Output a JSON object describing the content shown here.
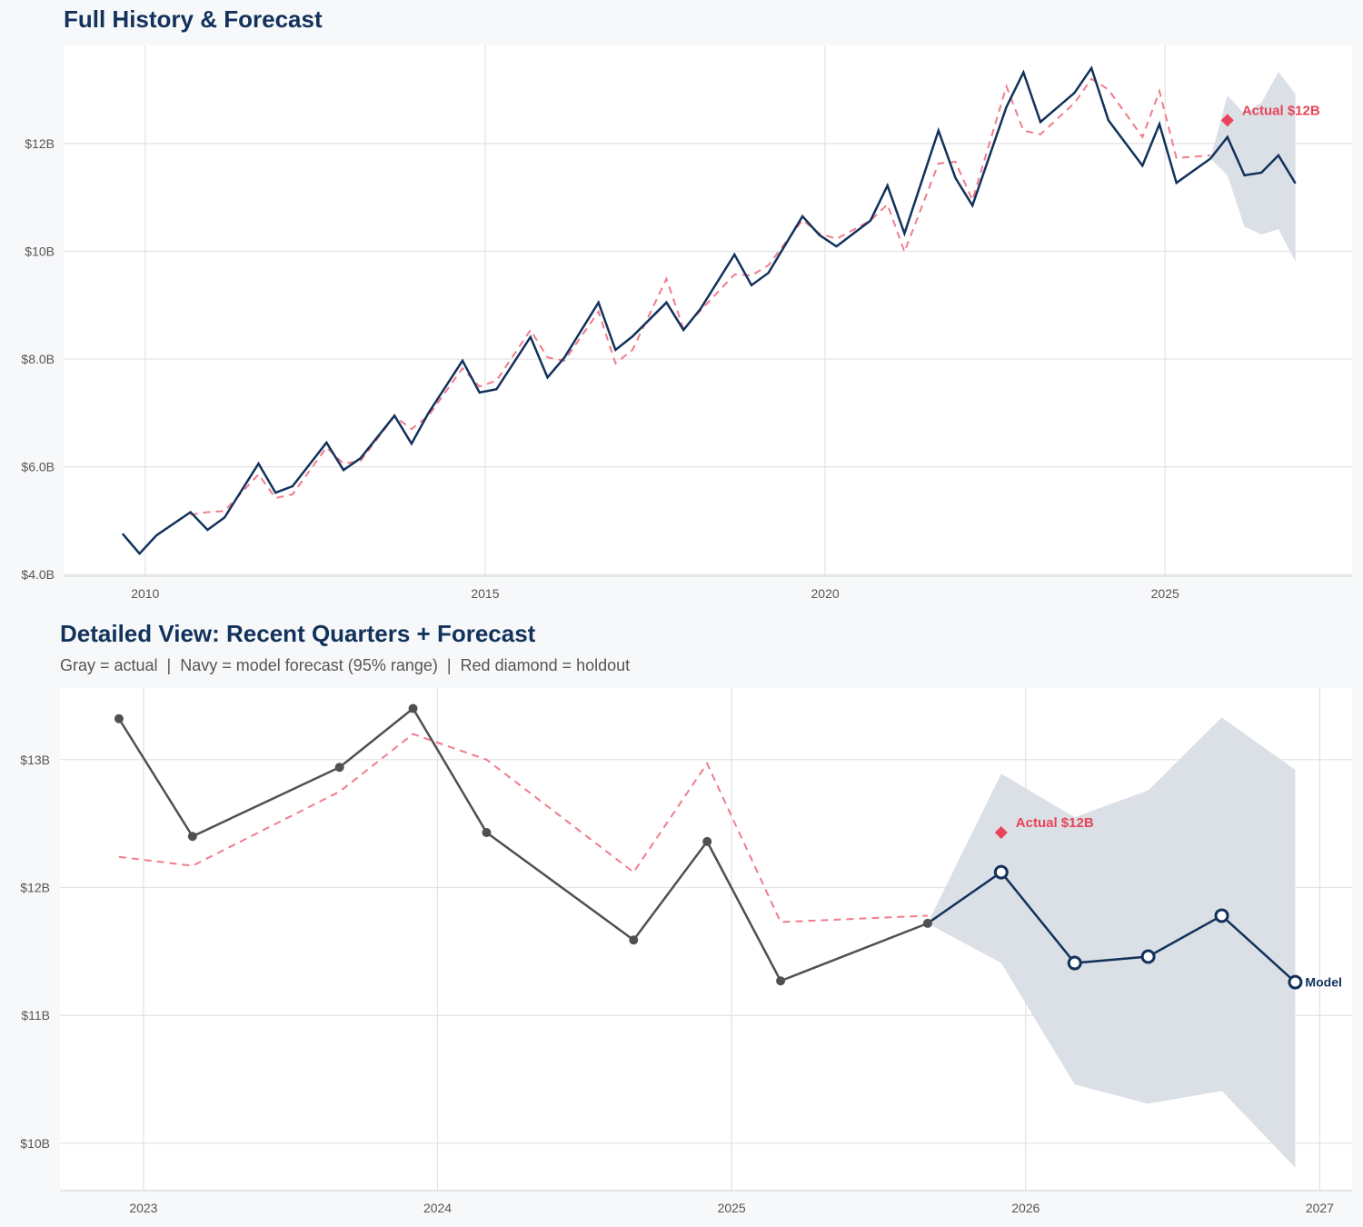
{
  "chart_data": [
    {
      "type": "line",
      "title": "Full History & Forecast",
      "xlim": [
        2008.8,
        2027.75
      ],
      "ylim": [
        3.97,
        13.82
      ],
      "grid": true,
      "xticks": [
        2010,
        2015,
        2020,
        2025
      ],
      "xtick_labels": [
        "2010",
        "2015",
        "2020",
        "2025"
      ],
      "yticks": [
        4,
        6,
        8,
        10,
        12
      ],
      "ytick_labels": [
        "$4.0B",
        "$6.0B",
        "$8.0B",
        "$10B",
        "$12B"
      ],
      "colors": {
        "actual": "#12325b",
        "fitted": "#f07c8c",
        "forecast": "#12325b",
        "band": "#d9dee5",
        "holdout": "#e8435a"
      },
      "actual": [
        [
          "2009-09",
          4.76
        ],
        [
          "2009-12",
          4.39
        ],
        [
          "2010-03",
          4.73
        ],
        [
          "2010-09",
          5.16
        ],
        [
          "2010-12",
          4.83
        ],
        [
          "2011-03",
          5.06
        ],
        [
          "2011-09",
          6.06
        ],
        [
          "2011-12",
          5.52
        ],
        [
          "2012-03",
          5.64
        ],
        [
          "2012-09",
          6.45
        ],
        [
          "2012-12",
          5.94
        ],
        [
          "2013-03",
          6.16
        ],
        [
          "2013-09",
          6.95
        ],
        [
          "2013-12",
          6.43
        ],
        [
          "2014-03",
          7.0
        ],
        [
          "2014-09",
          7.97
        ],
        [
          "2014-12",
          7.38
        ],
        [
          "2015-03",
          7.44
        ],
        [
          "2015-09",
          8.41
        ],
        [
          "2015-12",
          7.66
        ],
        [
          "2016-03",
          8.03
        ],
        [
          "2016-09",
          9.05
        ],
        [
          "2016-12",
          8.17
        ],
        [
          "2017-03",
          8.42
        ],
        [
          "2017-09",
          9.05
        ],
        [
          "2017-12",
          8.54
        ],
        [
          "2018-03",
          8.93
        ],
        [
          "2018-09",
          9.94
        ],
        [
          "2018-12",
          9.37
        ],
        [
          "2019-03",
          9.6
        ],
        [
          "2019-09",
          10.65
        ],
        [
          "2019-12",
          10.3
        ],
        [
          "2020-03",
          10.09
        ],
        [
          "2020-09",
          10.57
        ],
        [
          "2020-12",
          11.22
        ],
        [
          "2021-03",
          10.33
        ],
        [
          "2021-09",
          12.24
        ],
        [
          "2021-12",
          11.36
        ],
        [
          "2022-03",
          10.85
        ],
        [
          "2022-09",
          12.68
        ],
        [
          "2022-12",
          13.32
        ],
        [
          "2023-03",
          12.4
        ],
        [
          "2023-09",
          12.94
        ],
        [
          "2023-12",
          13.4
        ],
        [
          "2024-03",
          12.43
        ],
        [
          "2024-09",
          11.59
        ],
        [
          "2024-12",
          12.36
        ],
        [
          "2025-03",
          11.27
        ],
        [
          "2025-09",
          11.72
        ]
      ],
      "fitted": [
        [
          "2010-09",
          5.11
        ],
        [
          "2010-12",
          5.16
        ],
        [
          "2011-03",
          5.18
        ],
        [
          "2011-09",
          5.86
        ],
        [
          "2011-12",
          5.42
        ],
        [
          "2012-03",
          5.49
        ],
        [
          "2012-09",
          6.36
        ],
        [
          "2012-12",
          6.06
        ],
        [
          "2013-03",
          6.11
        ],
        [
          "2013-09",
          6.94
        ],
        [
          "2013-12",
          6.7
        ],
        [
          "2014-03",
          6.95
        ],
        [
          "2014-09",
          7.83
        ],
        [
          "2014-12",
          7.49
        ],
        [
          "2015-03",
          7.6
        ],
        [
          "2015-09",
          8.54
        ],
        [
          "2015-12",
          8.03
        ],
        [
          "2016-03",
          7.97
        ],
        [
          "2016-09",
          8.88
        ],
        [
          "2016-12",
          7.92
        ],
        [
          "2017-03",
          8.17
        ],
        [
          "2017-09",
          9.49
        ],
        [
          "2017-12",
          8.56
        ],
        [
          "2018-03",
          8.9
        ],
        [
          "2018-09",
          9.57
        ],
        [
          "2018-12",
          9.55
        ],
        [
          "2019-03",
          9.74
        ],
        [
          "2019-09",
          10.58
        ],
        [
          "2019-12",
          10.33
        ],
        [
          "2020-03",
          10.23
        ],
        [
          "2020-09",
          10.57
        ],
        [
          "2020-12",
          10.87
        ],
        [
          "2021-03",
          9.99
        ],
        [
          "2021-09",
          11.63
        ],
        [
          "2021-12",
          11.66
        ],
        [
          "2022-03",
          10.95
        ],
        [
          "2022-09",
          13.06
        ],
        [
          "2022-12",
          12.24
        ],
        [
          "2023-03",
          12.17
        ],
        [
          "2023-09",
          12.75
        ],
        [
          "2023-12",
          13.2
        ],
        [
          "2024-03",
          13.0
        ],
        [
          "2024-09",
          12.12
        ],
        [
          "2024-12",
          12.97
        ],
        [
          "2025-03",
          11.73
        ],
        [
          "2025-09",
          11.78
        ]
      ],
      "forecast": [
        [
          "2025-09",
          11.72
        ],
        [
          "2025-12",
          12.12
        ],
        [
          "2026-03",
          11.41
        ],
        [
          "2026-06",
          11.46
        ],
        [
          "2026-09",
          11.78
        ],
        [
          "2026-12",
          11.26
        ]
      ],
      "band": [
        [
          "2025-09",
          11.72,
          11.72
        ],
        [
          "2025-12",
          11.41,
          12.89
        ],
        [
          "2026-03",
          10.46,
          12.55
        ],
        [
          "2026-06",
          10.31,
          12.76
        ],
        [
          "2026-09",
          10.41,
          13.33
        ],
        [
          "2026-12",
          9.81,
          12.92
        ]
      ],
      "holdout": {
        "date": "2025-12",
        "value": 12.43,
        "label": "Actual $12B"
      }
    },
    {
      "type": "line",
      "title": "Detailed View: Recent Quarters + Forecast",
      "subtitle": "Gray = actual  |  Navy = model forecast (95% range)  |  Red diamond = holdout",
      "xlim": [
        2022.716,
        2027.11
      ],
      "ylim": [
        9.63,
        13.56
      ],
      "grid": true,
      "xticks": [
        2023,
        2024,
        2025,
        2026,
        2027
      ],
      "xtick_labels": [
        "2023",
        "2024",
        "2025",
        "2026",
        "2027"
      ],
      "yticks": [
        10,
        11,
        12,
        13
      ],
      "ytick_labels": [
        "$10B",
        "$11B",
        "$12B",
        "$13B"
      ],
      "colors": {
        "actual": "#505050",
        "fitted": "#f07c8c",
        "forecast": "#12325b",
        "band": "#d9dee5",
        "holdout": "#e8435a"
      },
      "actual": [
        [
          "2022-12",
          13.32
        ],
        [
          "2023-03",
          12.4
        ],
        [
          "2023-09",
          12.94
        ],
        [
          "2023-12",
          13.4
        ],
        [
          "2024-03",
          12.43
        ],
        [
          "2024-09",
          11.59
        ],
        [
          "2024-12",
          12.36
        ],
        [
          "2025-03",
          11.27
        ],
        [
          "2025-09",
          11.72
        ]
      ],
      "fitted": [
        [
          "2022-12",
          12.24
        ],
        [
          "2023-03",
          12.17
        ],
        [
          "2023-09",
          12.75
        ],
        [
          "2023-12",
          13.2
        ],
        [
          "2024-03",
          13.0
        ],
        [
          "2024-09",
          12.12
        ],
        [
          "2024-12",
          12.97
        ],
        [
          "2025-03",
          11.73
        ],
        [
          "2025-09",
          11.78
        ]
      ],
      "forecast": [
        [
          "2025-09",
          11.72
        ],
        [
          "2025-12",
          12.12
        ],
        [
          "2026-03",
          11.41
        ],
        [
          "2026-06",
          11.46
        ],
        [
          "2026-09",
          11.78
        ],
        [
          "2026-12",
          11.26
        ]
      ],
      "forecast_label": "Model",
      "band": [
        [
          "2025-09",
          11.72,
          11.72
        ],
        [
          "2025-12",
          11.41,
          12.89
        ],
        [
          "2026-03",
          10.46,
          12.55
        ],
        [
          "2026-06",
          10.31,
          12.76
        ],
        [
          "2026-09",
          10.41,
          13.33
        ],
        [
          "2026-12",
          9.81,
          12.92
        ]
      ],
      "holdout": {
        "date": "2025-12",
        "value": 12.43,
        "label": "Actual $12B"
      }
    }
  ]
}
